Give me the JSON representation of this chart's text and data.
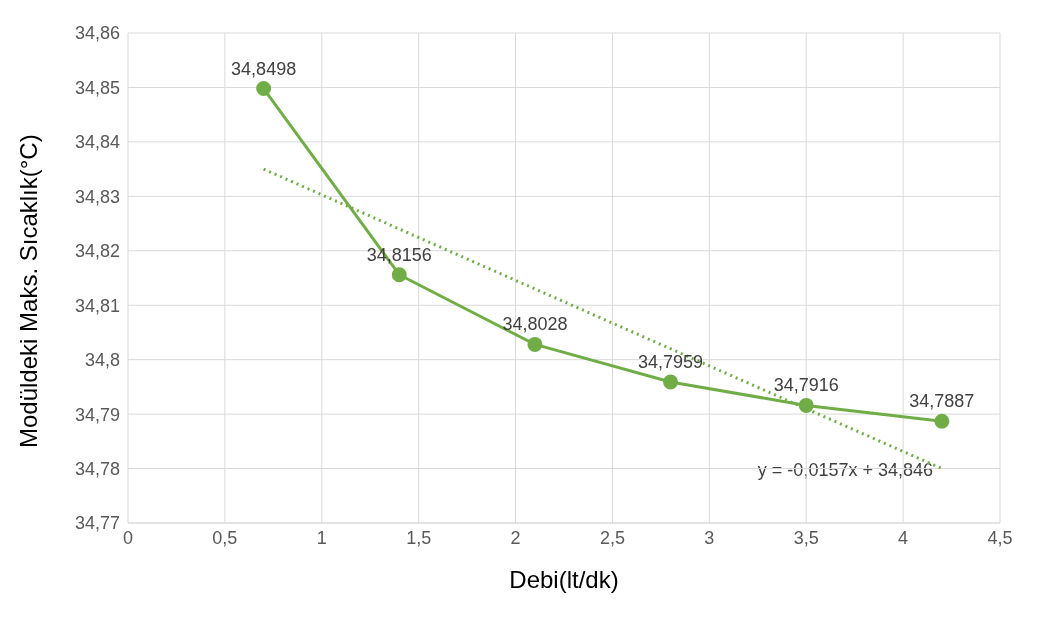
{
  "chart_data": {
    "type": "line",
    "xlabel": "Debi(lt/dk)",
    "ylabel": "Modüldeki Maks. Sıcaklık(°C)",
    "x": [
      0.7,
      1.4,
      2.1,
      2.8,
      3.5,
      4.2
    ],
    "series": [
      {
        "color": "#70ad47",
        "values": [
          34.8498,
          34.8156,
          34.8028,
          34.7959,
          34.7916,
          34.7887
        ],
        "value_labels": [
          "34,8498",
          "34,8156",
          "34,8028",
          "34,7959",
          "34,7916",
          "34,7887"
        ],
        "marker": "circle",
        "line_style": "solid"
      },
      {
        "type": "line",
        "color": "#70ad47",
        "x": [
          0.7,
          4.2
        ],
        "values": [
          34.835,
          34.78
        ],
        "marker": "none",
        "line_style": "dotted"
      }
    ],
    "annotations": [
      "y = -0,0157x + 34,846"
    ],
    "xlim": [
      0,
      4.5
    ],
    "xticks": [
      0,
      {
        "value": 0.5,
        "label": "0,5"
      },
      1,
      {
        "value": 1.5,
        "label": "1,5"
      },
      2,
      {
        "value": 2.5,
        "label": "2,5"
      },
      3,
      {
        "value": 3.5,
        "label": "3,5"
      },
      4,
      {
        "value": 4.5,
        "label": "4,5"
      }
    ],
    "ylim": [
      34.77,
      34.86
    ],
    "yticks": [
      {
        "value": 34.77,
        "label": "34,77"
      },
      {
        "value": 34.78,
        "label": "34,78"
      },
      {
        "value": 34.79,
        "label": "34,79"
      },
      {
        "value": 34.8,
        "label": "34,8"
      },
      {
        "value": 34.81,
        "label": "34,81"
      },
      {
        "value": 34.82,
        "label": "34,82"
      },
      {
        "value": 34.83,
        "label": "34,83"
      },
      {
        "value": 34.84,
        "label": "34,84"
      },
      {
        "value": 34.85,
        "label": "34,85"
      },
      {
        "value": 34.86,
        "label": "34,86"
      }
    ],
    "grid": true
  }
}
